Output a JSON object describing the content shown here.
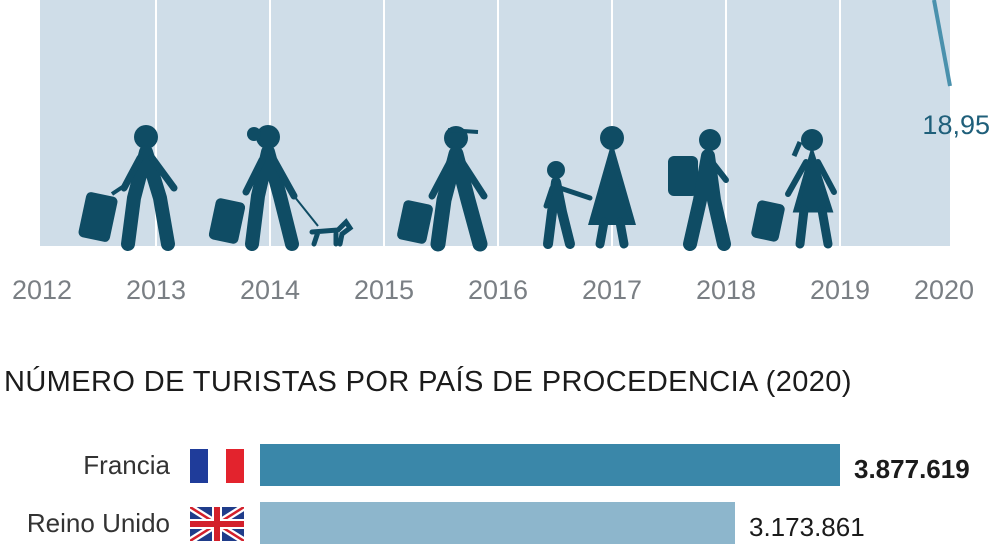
{
  "chart_data": [
    {
      "type": "line",
      "x": [
        "2012",
        "2013",
        "2014",
        "2015",
        "2016",
        "2017",
        "2018",
        "2019",
        "2020"
      ],
      "annotations": [
        {
          "x": "2020",
          "label": "18,95"
        }
      ],
      "grid": true
    },
    {
      "type": "bar",
      "orientation": "horizontal",
      "title": "NÚMERO DE TURISTAS POR PAÍS DE PROCEDENCIA (2020)",
      "categories": [
        "Francia",
        "Reino Unido"
      ],
      "values": [
        3877619,
        3173861
      ],
      "value_labels": [
        "3.877.619",
        "3.173.861"
      ],
      "xlim": [
        0,
        3877619
      ]
    }
  ],
  "colors": {
    "plot_background": "#cfdde8",
    "gridline": "#ffffff",
    "figures": "#0f4c64",
    "line": "#4a91ad",
    "bar_top": "#3a87a9",
    "bar_second": "#8db6cc",
    "year_text": "#7a7f84"
  },
  "icons": [
    "france-flag-icon",
    "uk-flag-icon",
    "traveler-figures-illustration"
  ]
}
